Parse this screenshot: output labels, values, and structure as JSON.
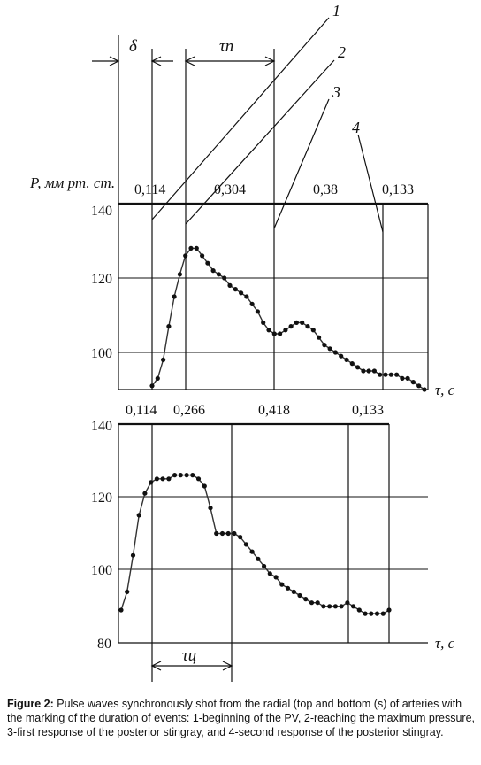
{
  "figure": {
    "y_unit_label": "P, мм рт. ст.",
    "x_unit_label_top": "τ, с",
    "x_unit_label_bottom": "τ, с",
    "delta_label": "δ",
    "tau_p_label": "τп",
    "tau_ts_label": "τц",
    "marker_labels": [
      "1",
      "2",
      "3",
      "4"
    ],
    "caption_bold": "Figure 2:",
    "caption_text": " Pulse waves synchronously shot from the radial (top and bottom (s) of arteries with the marking of the duration of events: 1-beginning of the PV, 2-reaching the maximum pressure, 3-first response of the posterior stingray, and 4-second response of the posterior stingray."
  },
  "colors": {
    "line": "#111111",
    "curve": "#333333",
    "marker": "#111111"
  },
  "chart_data": [
    {
      "type": "line",
      "title": "",
      "ylim": [
        90,
        140
      ],
      "yticks": [
        "140",
        "120",
        "100"
      ],
      "interval_labels": [
        "0,114",
        "0,304",
        "0,38",
        "0,133"
      ],
      "series": [
        {
          "values": [
            91,
            93,
            98,
            107,
            115,
            121,
            126,
            128,
            128,
            126,
            124,
            122,
            121,
            120,
            118,
            117,
            116,
            115,
            113,
            111,
            108,
            106,
            105,
            105,
            106,
            107,
            108,
            108,
            107,
            106,
            104,
            102,
            101,
            100,
            99,
            98,
            97,
            96,
            95,
            95,
            95,
            94,
            94,
            94,
            94,
            93,
            93,
            92,
            91,
            90
          ]
        }
      ]
    },
    {
      "type": "line",
      "title": "",
      "ylim": [
        80,
        140
      ],
      "yticks": [
        "140",
        "120",
        "100",
        "80"
      ],
      "interval_labels": [
        "0,114",
        "0,266",
        "0,418",
        "0,133"
      ],
      "series": [
        {
          "values": [
            89,
            94,
            104,
            115,
            121,
            124,
            125,
            125,
            125,
            126,
            126,
            126,
            126,
            125,
            123,
            117,
            110,
            110,
            110,
            110,
            109,
            107,
            105,
            103,
            101,
            99,
            98,
            96,
            95,
            94,
            93,
            92,
            91,
            91,
            90,
            90,
            90,
            90,
            91,
            90,
            89,
            88,
            88,
            88,
            88,
            89
          ]
        }
      ]
    }
  ]
}
